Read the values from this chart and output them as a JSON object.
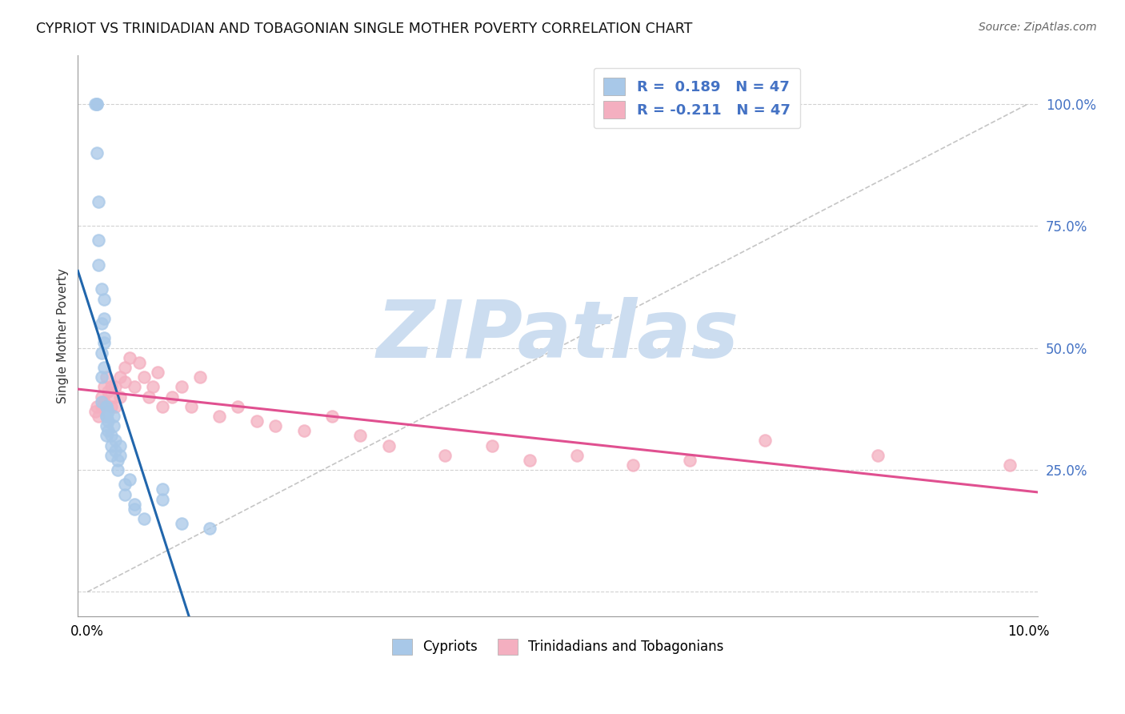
{
  "title": "CYPRIOT VS TRINIDADIAN AND TOBAGONIAN SINGLE MOTHER POVERTY CORRELATION CHART",
  "source": "Source: ZipAtlas.com",
  "ylabel": "Single Mother Poverty",
  "R_blue": 0.189,
  "N_blue": 47,
  "R_pink": -0.211,
  "N_pink": 47,
  "legend_label_blue": "Cypriots",
  "legend_label_pink": "Trinidadians and Tobagonians",
  "blue_dot_color": "#a8c8e8",
  "pink_dot_color": "#f4afc0",
  "blue_line_color": "#2166ac",
  "pink_line_color": "#e05090",
  "ref_line_color": "#bbbbbb",
  "watermark_color": "#ccddf0",
  "background_color": "#ffffff",
  "grid_color": "#cccccc",
  "tick_color_right": "#4472c4",
  "cypriot_x": [
    0.0008,
    0.001,
    0.001,
    0.001,
    0.0012,
    0.0012,
    0.0012,
    0.0015,
    0.0015,
    0.0015,
    0.0015,
    0.0015,
    0.0018,
    0.0018,
    0.0018,
    0.0018,
    0.0018,
    0.002,
    0.002,
    0.002,
    0.002,
    0.002,
    0.002,
    0.0022,
    0.0022,
    0.0022,
    0.0025,
    0.0025,
    0.0025,
    0.0028,
    0.0028,
    0.003,
    0.003,
    0.0032,
    0.0032,
    0.0035,
    0.0035,
    0.004,
    0.004,
    0.0045,
    0.005,
    0.005,
    0.006,
    0.008,
    0.008,
    0.01,
    0.013
  ],
  "cypriot_y": [
    1.0,
    1.0,
    1.0,
    0.9,
    0.8,
    0.72,
    0.67,
    0.62,
    0.55,
    0.49,
    0.44,
    0.39,
    0.56,
    0.51,
    0.46,
    0.6,
    0.52,
    0.36,
    0.38,
    0.38,
    0.36,
    0.34,
    0.32,
    0.37,
    0.35,
    0.33,
    0.32,
    0.3,
    0.28,
    0.36,
    0.34,
    0.31,
    0.29,
    0.27,
    0.25,
    0.3,
    0.28,
    0.22,
    0.2,
    0.23,
    0.18,
    0.17,
    0.15,
    0.21,
    0.19,
    0.14,
    0.13
  ],
  "trini_x": [
    0.0008,
    0.001,
    0.0012,
    0.0015,
    0.0015,
    0.0018,
    0.0018,
    0.002,
    0.0022,
    0.0025,
    0.0025,
    0.0028,
    0.003,
    0.003,
    0.0035,
    0.0035,
    0.004,
    0.004,
    0.0045,
    0.005,
    0.0055,
    0.006,
    0.0065,
    0.007,
    0.0075,
    0.008,
    0.009,
    0.01,
    0.011,
    0.012,
    0.014,
    0.016,
    0.018,
    0.02,
    0.023,
    0.026,
    0.029,
    0.032,
    0.038,
    0.043,
    0.047,
    0.052,
    0.058,
    0.064,
    0.072,
    0.084,
    0.098
  ],
  "trini_y": [
    0.37,
    0.38,
    0.36,
    0.4,
    0.38,
    0.42,
    0.39,
    0.44,
    0.41,
    0.42,
    0.38,
    0.4,
    0.42,
    0.38,
    0.44,
    0.4,
    0.46,
    0.43,
    0.48,
    0.42,
    0.47,
    0.44,
    0.4,
    0.42,
    0.45,
    0.38,
    0.4,
    0.42,
    0.38,
    0.44,
    0.36,
    0.38,
    0.35,
    0.34,
    0.33,
    0.36,
    0.32,
    0.3,
    0.28,
    0.3,
    0.27,
    0.28,
    0.26,
    0.27,
    0.31,
    0.28,
    0.26
  ],
  "xlim": [
    -0.001,
    0.101
  ],
  "ylim": [
    -0.05,
    1.1
  ],
  "x_ticks": [
    0.0,
    0.02,
    0.04,
    0.06,
    0.08,
    0.1
  ],
  "x_tick_labels": [
    "0.0%",
    "",
    "",
    "",
    "",
    "10.0%"
  ],
  "y_ticks": [
    0.0,
    0.25,
    0.5,
    0.75,
    1.0
  ],
  "y_tick_labels": [
    "",
    "25.0%",
    "50.0%",
    "75.0%",
    "100.0%"
  ]
}
